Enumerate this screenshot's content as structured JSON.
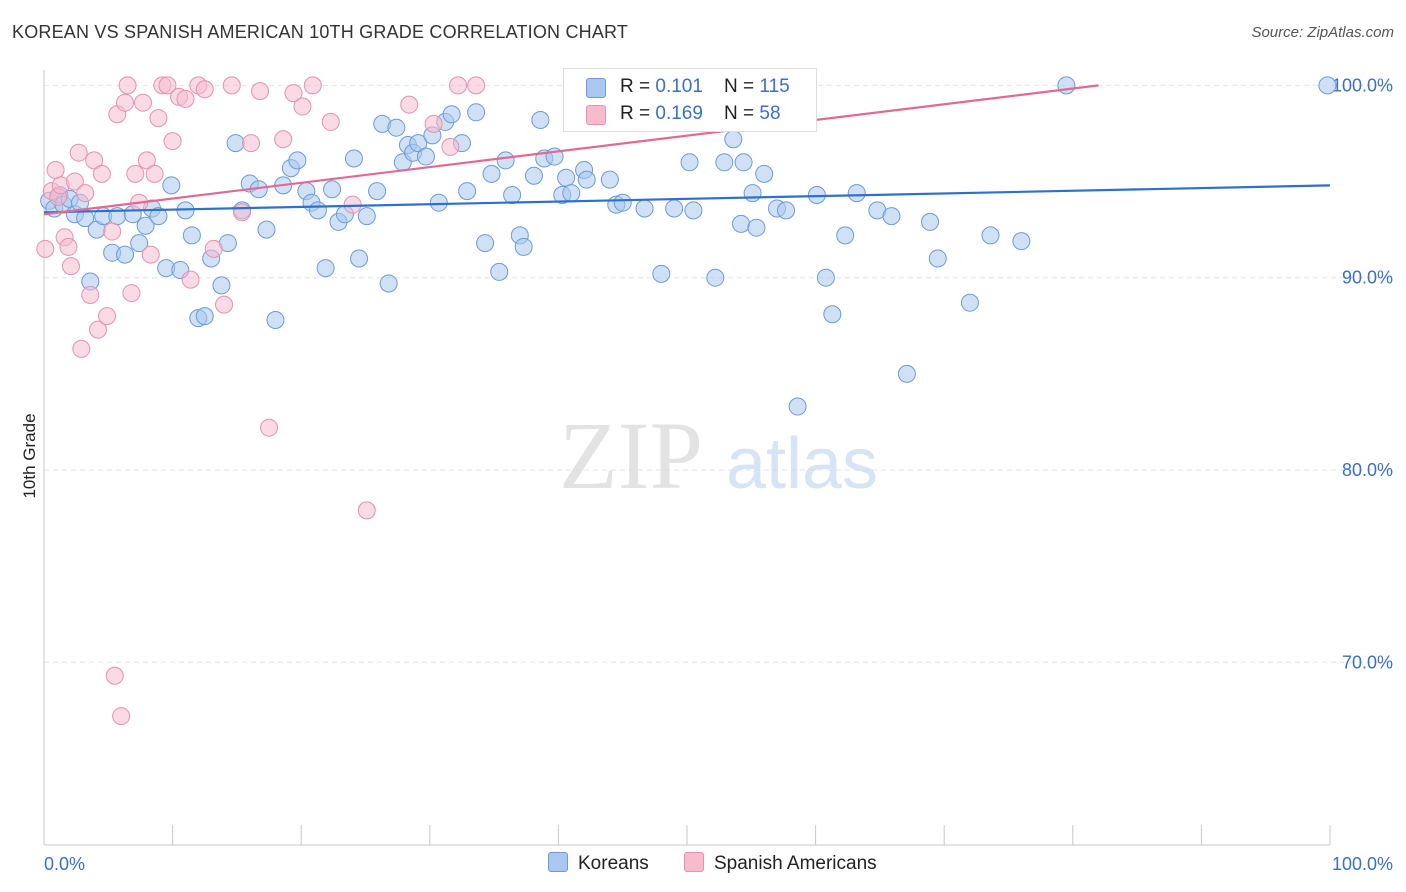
{
  "title": "KOREAN VS SPANISH AMERICAN 10TH GRADE CORRELATION CHART",
  "source": "Source: ZipAtlas.com",
  "watermark": {
    "zip": "ZIP",
    "atlas": "atlas"
  },
  "legend": {
    "rows": [
      {
        "r_label": "R = ",
        "r_value": "0.101",
        "n_label": "N = ",
        "n_value": "115"
      },
      {
        "r_label": "R = ",
        "r_value": "0.169",
        "n_label": "N = ",
        "n_value": "58"
      }
    ]
  },
  "bottom_legend": {
    "koreans": "Koreans",
    "spanish": "Spanish Americans"
  },
  "colors": {
    "blue_fill": "#aac8ee",
    "blue_stroke": "#6b9bd8",
    "blue_line": "#2f6fce",
    "pink_fill": "#f6bccd",
    "pink_stroke": "#e592ae",
    "pink_line": "#e06a94",
    "tick_label": "#3b6fc8",
    "grid": "#e3e3e3"
  },
  "chart_data": {
    "type": "scatter",
    "title": "KOREAN VS SPANISH AMERICAN 10TH GRADE CORRELATION CHART",
    "xlabel": "",
    "ylabel": "10th Grade",
    "x_unit": "%",
    "y_unit": "%",
    "xlim": [
      0,
      100
    ],
    "ylim": [
      60.5,
      100.8
    ],
    "x_tick_labels": [
      {
        "value": 0,
        "label": "0.0%"
      },
      {
        "value": 100,
        "label": "100.0%"
      }
    ],
    "y_tick_labels": [
      {
        "value": 100,
        "label": "100.0%"
      },
      {
        "value": 90,
        "label": "90.0%"
      },
      {
        "value": 80,
        "label": "80.0%"
      },
      {
        "value": 70,
        "label": "70.0%"
      }
    ],
    "grid": true,
    "legend_position": "top-center",
    "series": [
      {
        "name": "Koreans",
        "R": 0.101,
        "N": 115,
        "trend": {
          "x": [
            0,
            100
          ],
          "y": [
            93.4,
            94.8
          ]
        },
        "points": [
          [
            0.4,
            94.0
          ],
          [
            0.8,
            93.6
          ],
          [
            1.2,
            94.3
          ],
          [
            1.5,
            93.8
          ],
          [
            2.0,
            94.1
          ],
          [
            2.4,
            93.3
          ],
          [
            2.8,
            93.9
          ],
          [
            3.2,
            93.1
          ],
          [
            3.6,
            89.8
          ],
          [
            4.1,
            92.5
          ],
          [
            4.6,
            93.2
          ],
          [
            5.3,
            91.3
          ],
          [
            5.7,
            93.2
          ],
          [
            6.3,
            91.2
          ],
          [
            6.9,
            93.3
          ],
          [
            7.4,
            91.8
          ],
          [
            7.9,
            92.7
          ],
          [
            8.4,
            93.6
          ],
          [
            8.9,
            93.2
          ],
          [
            9.5,
            90.5
          ],
          [
            9.9,
            94.8
          ],
          [
            10.6,
            90.4
          ],
          [
            11.0,
            93.5
          ],
          [
            11.5,
            92.2
          ],
          [
            12.0,
            87.9
          ],
          [
            12.5,
            88.0
          ],
          [
            13.0,
            91.0
          ],
          [
            13.8,
            89.6
          ],
          [
            14.3,
            91.8
          ],
          [
            14.9,
            97.0
          ],
          [
            15.4,
            93.5
          ],
          [
            16.0,
            94.9
          ],
          [
            16.7,
            94.6
          ],
          [
            17.3,
            92.5
          ],
          [
            18.0,
            87.8
          ],
          [
            18.6,
            94.8
          ],
          [
            19.2,
            95.7
          ],
          [
            19.7,
            96.1
          ],
          [
            20.4,
            94.5
          ],
          [
            20.8,
            93.9
          ],
          [
            21.3,
            93.5
          ],
          [
            21.9,
            90.5
          ],
          [
            22.4,
            94.6
          ],
          [
            22.9,
            92.9
          ],
          [
            23.4,
            93.3
          ],
          [
            24.1,
            96.2
          ],
          [
            24.5,
            91.0
          ],
          [
            25.1,
            93.2
          ],
          [
            25.9,
            94.5
          ],
          [
            26.3,
            98.0
          ],
          [
            26.8,
            89.7
          ],
          [
            27.4,
            97.8
          ],
          [
            27.9,
            96.0
          ],
          [
            28.3,
            96.9
          ],
          [
            28.7,
            96.5
          ],
          [
            29.1,
            97.0
          ],
          [
            29.7,
            96.3
          ],
          [
            30.2,
            97.4
          ],
          [
            30.7,
            93.9
          ],
          [
            31.2,
            98.1
          ],
          [
            31.7,
            98.5
          ],
          [
            32.5,
            97.0
          ],
          [
            32.9,
            94.5
          ],
          [
            33.6,
            98.6
          ],
          [
            34.3,
            91.8
          ],
          [
            34.8,
            95.4
          ],
          [
            35.4,
            90.3
          ],
          [
            35.9,
            96.1
          ],
          [
            36.4,
            94.3
          ],
          [
            37.0,
            92.2
          ],
          [
            37.3,
            91.6
          ],
          [
            38.1,
            95.3
          ],
          [
            38.6,
            98.2
          ],
          [
            38.9,
            96.2
          ],
          [
            39.7,
            96.3
          ],
          [
            40.3,
            94.3
          ],
          [
            40.6,
            95.2
          ],
          [
            41.0,
            94.4
          ],
          [
            42.0,
            95.6
          ],
          [
            42.2,
            95.1
          ],
          [
            44.0,
            95.1
          ],
          [
            44.5,
            93.8
          ],
          [
            45.0,
            93.9
          ],
          [
            46.7,
            93.6
          ],
          [
            48.0,
            90.2
          ],
          [
            49.0,
            93.6
          ],
          [
            50.2,
            96.0
          ],
          [
            50.5,
            93.5
          ],
          [
            52.2,
            90.0
          ],
          [
            52.9,
            96.0
          ],
          [
            53.6,
            97.2
          ],
          [
            54.2,
            92.8
          ],
          [
            54.4,
            96.0
          ],
          [
            55.1,
            94.4
          ],
          [
            55.4,
            92.6
          ],
          [
            56.0,
            95.4
          ],
          [
            57.0,
            93.6
          ],
          [
            57.7,
            93.5
          ],
          [
            57.6,
            99.0
          ],
          [
            58.6,
            83.3
          ],
          [
            60.1,
            94.3
          ],
          [
            60.8,
            90.0
          ],
          [
            61.3,
            88.1
          ],
          [
            62.3,
            92.2
          ],
          [
            63.2,
            94.4
          ],
          [
            64.8,
            93.5
          ],
          [
            65.9,
            93.2
          ],
          [
            67.1,
            85.0
          ],
          [
            69.5,
            91.0
          ],
          [
            72.0,
            88.7
          ],
          [
            73.6,
            92.2
          ],
          [
            76.0,
            91.9
          ],
          [
            79.5,
            100.0
          ],
          [
            99.8,
            100.0
          ],
          [
            68.9,
            92.9
          ]
        ]
      },
      {
        "name": "Spanish Americans",
        "R": 0.169,
        "N": 58,
        "trend": {
          "x": [
            0,
            82
          ],
          "y": [
            93.3,
            100.0
          ]
        },
        "points": [
          [
            0.1,
            91.5
          ],
          [
            0.6,
            94.5
          ],
          [
            0.9,
            95.6
          ],
          [
            1.1,
            94.2
          ],
          [
            1.3,
            94.8
          ],
          [
            1.6,
            92.1
          ],
          [
            1.9,
            91.6
          ],
          [
            2.1,
            90.6
          ],
          [
            2.4,
            95.0
          ],
          [
            2.7,
            96.5
          ],
          [
            2.9,
            86.3
          ],
          [
            3.2,
            94.4
          ],
          [
            3.6,
            89.1
          ],
          [
            3.9,
            96.1
          ],
          [
            4.2,
            87.3
          ],
          [
            4.5,
            95.4
          ],
          [
            4.9,
            88.0
          ],
          [
            5.3,
            92.4
          ],
          [
            5.5,
            69.3
          ],
          [
            5.7,
            98.5
          ],
          [
            6.0,
            67.2
          ],
          [
            6.3,
            99.1
          ],
          [
            6.5,
            100.0
          ],
          [
            6.8,
            89.2
          ],
          [
            7.1,
            95.4
          ],
          [
            7.4,
            93.9
          ],
          [
            7.7,
            99.1
          ],
          [
            8.0,
            96.1
          ],
          [
            8.3,
            91.2
          ],
          [
            8.6,
            95.4
          ],
          [
            8.9,
            98.3
          ],
          [
            9.2,
            100.0
          ],
          [
            9.6,
            100.0
          ],
          [
            10.0,
            97.1
          ],
          [
            10.5,
            99.4
          ],
          [
            11.0,
            99.3
          ],
          [
            11.4,
            89.9
          ],
          [
            12.0,
            100.0
          ],
          [
            12.5,
            99.8
          ],
          [
            13.2,
            91.5
          ],
          [
            14.0,
            88.6
          ],
          [
            14.6,
            100.0
          ],
          [
            15.4,
            93.4
          ],
          [
            16.1,
            97.0
          ],
          [
            16.8,
            99.7
          ],
          [
            17.5,
            82.2
          ],
          [
            18.6,
            97.2
          ],
          [
            19.4,
            99.6
          ],
          [
            20.1,
            98.9
          ],
          [
            20.9,
            100.0
          ],
          [
            22.3,
            98.1
          ],
          [
            24.0,
            93.8
          ],
          [
            25.1,
            77.9
          ],
          [
            28.4,
            99.0
          ],
          [
            30.3,
            98.0
          ],
          [
            31.6,
            96.8
          ],
          [
            32.2,
            100.0
          ],
          [
            33.6,
            100.0
          ]
        ]
      }
    ]
  }
}
